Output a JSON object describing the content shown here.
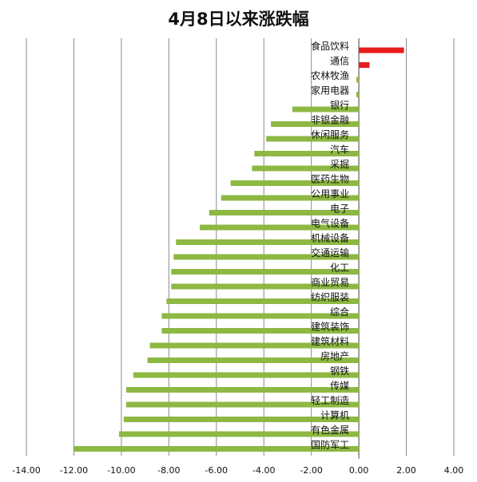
{
  "chart_data": {
    "type": "bar",
    "orientation": "horizontal",
    "title": "4月8日以来涨跌幅",
    "xlabel": "",
    "ylabel": "",
    "xlim": [
      -14,
      4
    ],
    "x_ticks": [
      "-14.00",
      "-12.00",
      "-10.00",
      "-8.00",
      "-6.00",
      "-4.00",
      "-2.00",
      "0.00",
      "2.00",
      "4.00"
    ],
    "grid": true,
    "legend": "none",
    "colors": {
      "positive": "#e81c1c",
      "negative": "#8db843"
    },
    "categories": [
      "食品饮料",
      "通信",
      "农林牧渔",
      "家用电器",
      "银行",
      "非银金融",
      "休闲服务",
      "汽车",
      "采掘",
      "医药生物",
      "公用事业",
      "电子",
      "电气设备",
      "机械设备",
      "交通运输",
      "化工",
      "商业贸易",
      "纺织服装",
      "综合",
      "建筑装饰",
      "建筑材料",
      "房地产",
      "钢铁",
      "传媒",
      "轻工制造",
      "计算机",
      "有色金属",
      "国防军工"
    ],
    "values": [
      1.9,
      0.45,
      -0.1,
      -0.1,
      -2.8,
      -3.7,
      -3.9,
      -4.4,
      -4.5,
      -5.4,
      -5.8,
      -6.3,
      -6.7,
      -7.7,
      -7.8,
      -7.9,
      -7.9,
      -8.1,
      -8.3,
      -8.3,
      -8.8,
      -8.9,
      -9.5,
      -9.8,
      -9.8,
      -9.9,
      -10.1,
      -12.0
    ]
  }
}
